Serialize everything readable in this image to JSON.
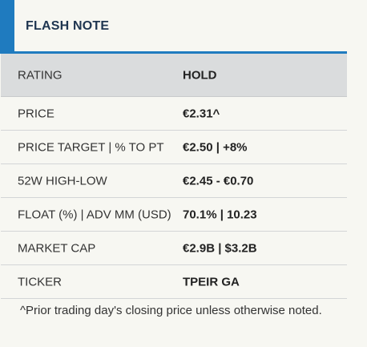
{
  "header": {
    "title": "FLASH NOTE",
    "accent_color": "#1f7bbf"
  },
  "rows": [
    {
      "label": "RATING",
      "value": "HOLD"
    },
    {
      "label": "PRICE",
      "value": "€2.31^"
    },
    {
      "label": "PRICE TARGET | % TO PT",
      "value": "€2.50 | +8%"
    },
    {
      "label": "52W HIGH-LOW",
      "value": "€2.45 - €0.70"
    },
    {
      "label": "FLOAT (%) | ADV MM (USD)",
      "value": "70.1% | 10.23"
    },
    {
      "label": "MARKET CAP",
      "value": "€2.9B | $3.2B"
    },
    {
      "label": "TICKER",
      "value": "TPEIR GA"
    }
  ],
  "footnote": "^Prior trading day's closing price unless otherwise noted."
}
